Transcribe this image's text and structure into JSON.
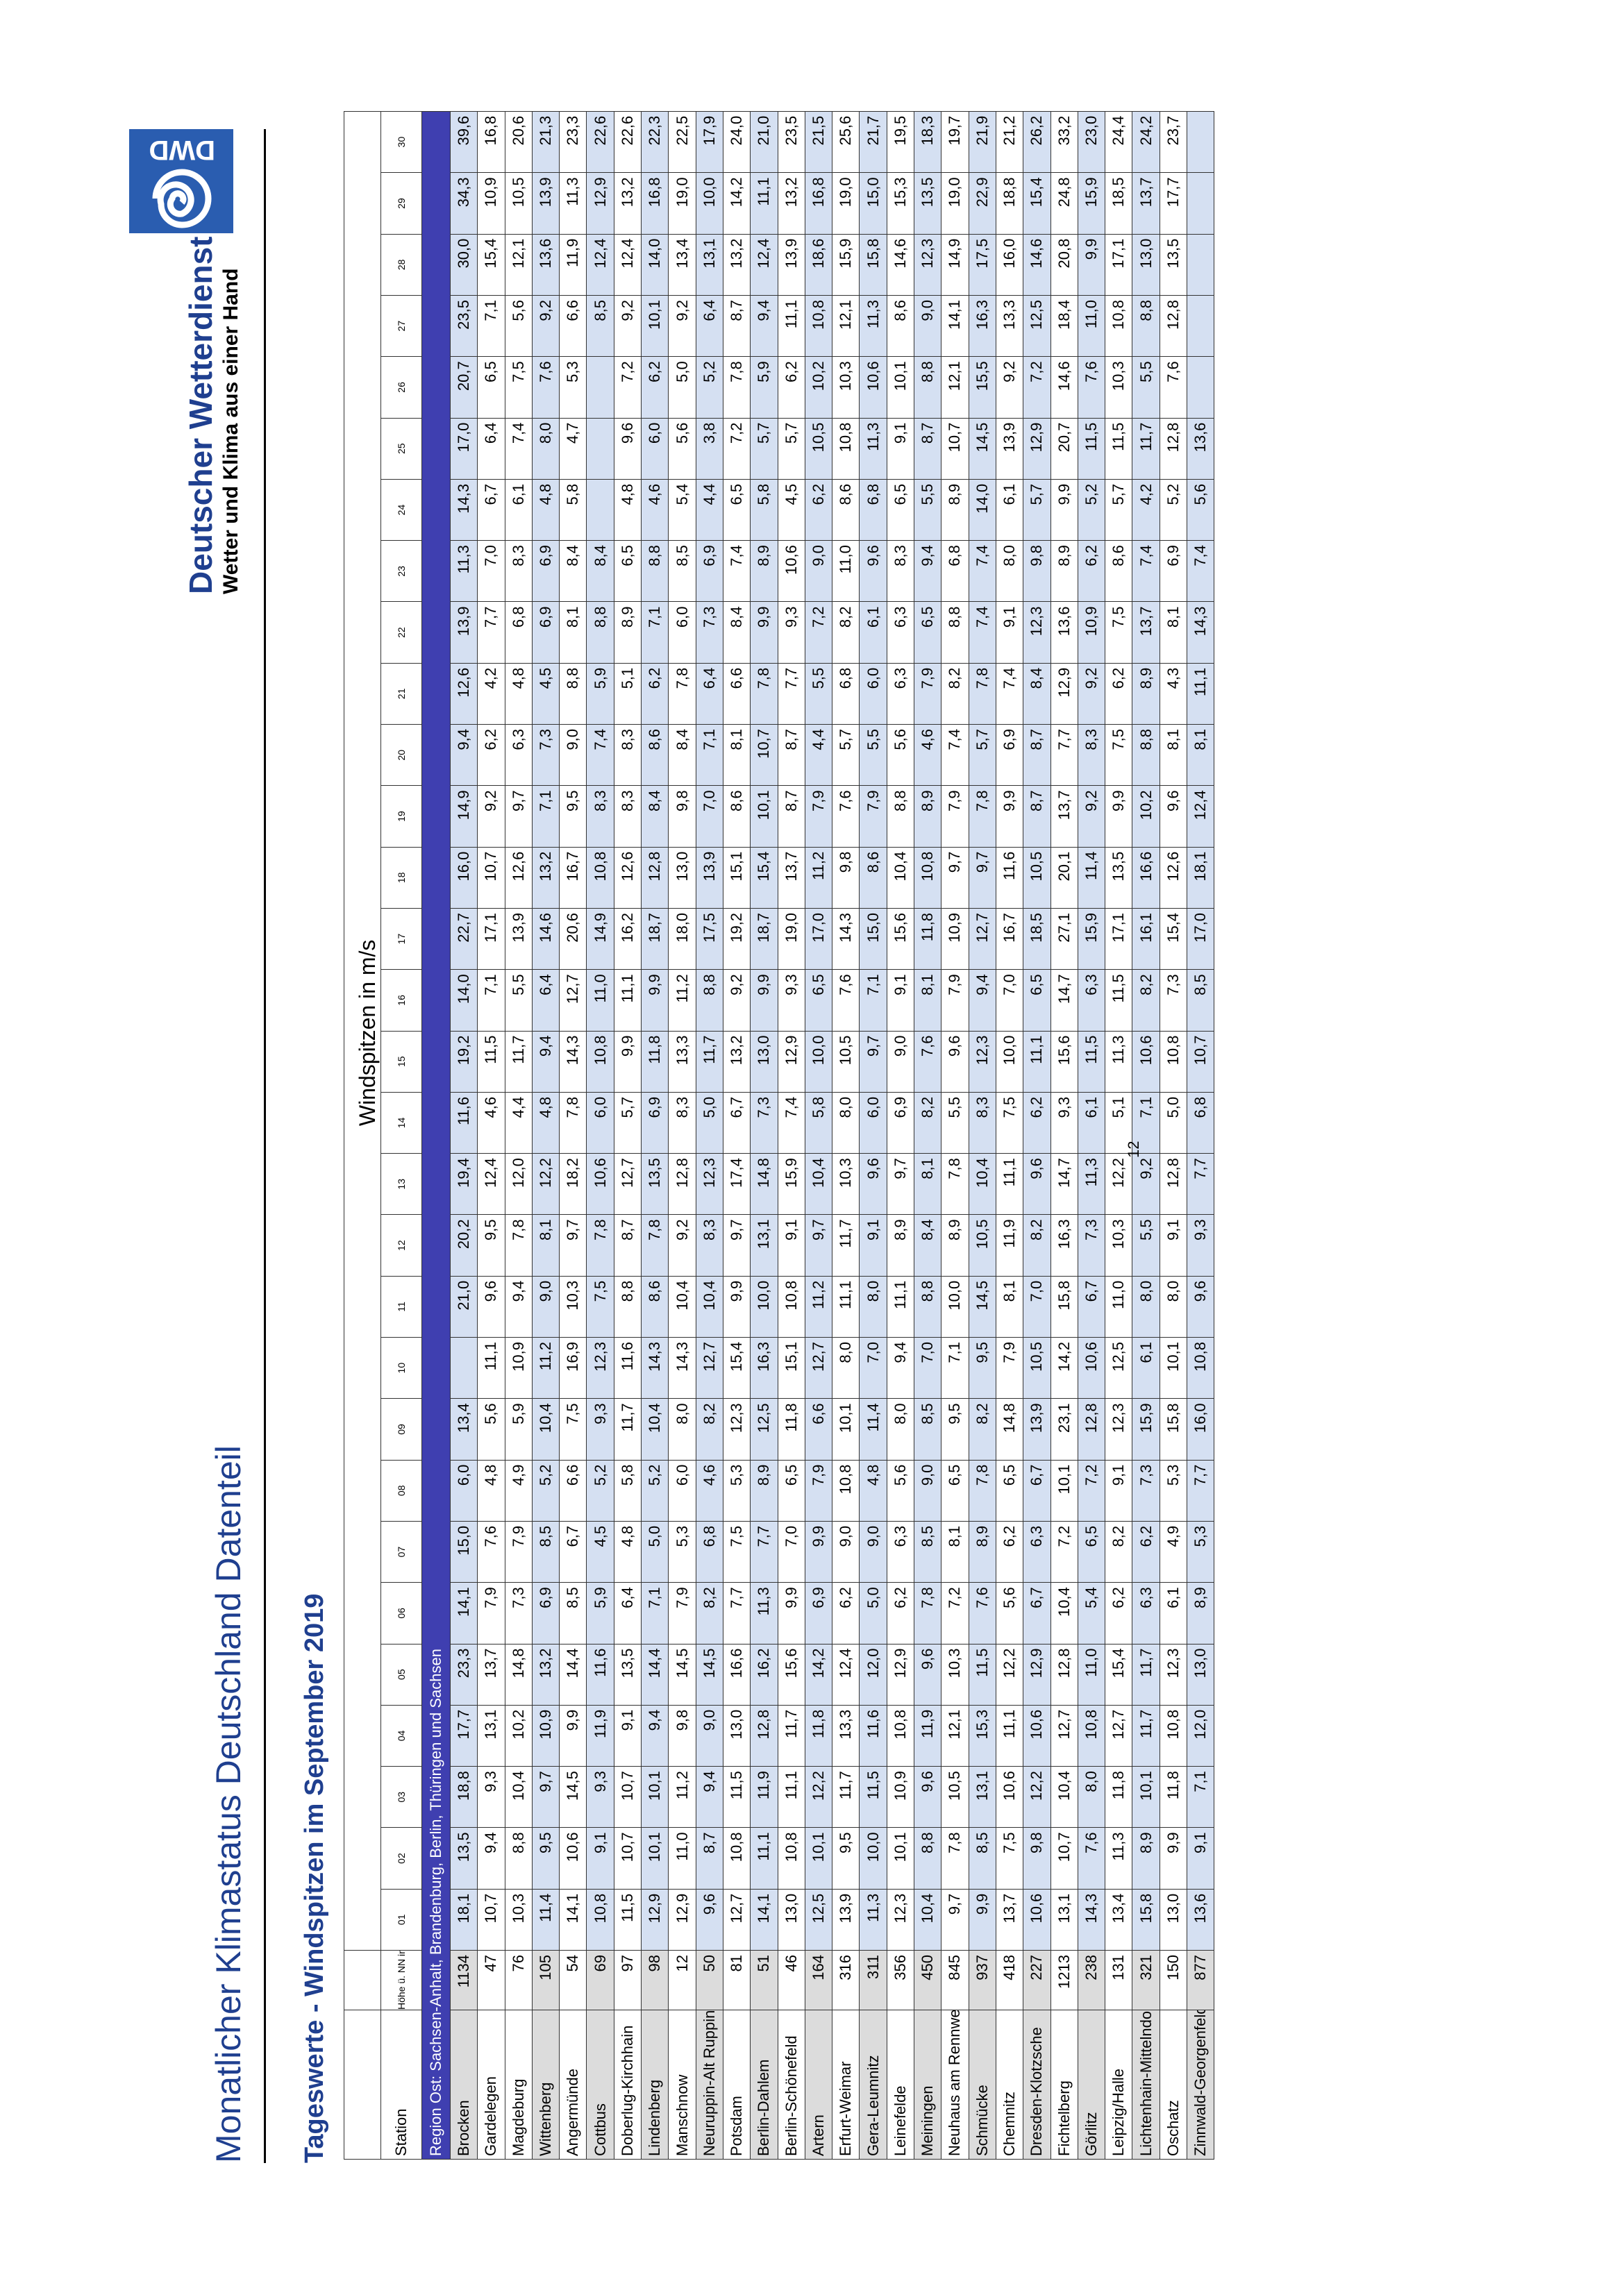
{
  "header": {
    "title": "Monatlicher Klimastatus Deutschland Datenteil",
    "brand_name": "Deutscher Wetterdienst",
    "brand_slogan": "Wetter und Klima aus einer Hand",
    "logo_text": "DWD"
  },
  "section_title": "Tageswerte - Windspitzen im September 2019",
  "table": {
    "station_header": "Station",
    "height_header": "Höhe ü. NN in m",
    "group_header": "Windspitzen in m/s",
    "days": [
      "01",
      "02",
      "03",
      "04",
      "05",
      "06",
      "07",
      "08",
      "09",
      "10",
      "11",
      "12",
      "13",
      "14",
      "15",
      "16",
      "17",
      "18",
      "19",
      "20",
      "21",
      "22",
      "23",
      "24",
      "25",
      "26",
      "27",
      "28",
      "29",
      "30"
    ],
    "region": "Region Ost: Sachsen-Anhalt, Brandenburg, Berlin, Thüringen und Sachsen",
    "rows": [
      {
        "station": "Brocken",
        "height": "1134",
        "hl": true,
        "values": [
          "18,1",
          "13,5",
          "18,8",
          "17,7",
          "23,3",
          "14,1",
          "15,0",
          "6,0",
          "13,4",
          "",
          "21,0",
          "20,2",
          "19,4",
          "11,6",
          "19,2",
          "14,0",
          "22,7",
          "16,0",
          "14,9",
          "9,4",
          "12,6",
          "13,9",
          "11,3",
          "14,3",
          "17,0",
          "20,7",
          "23,5",
          "30,0",
          "34,3",
          "39,6"
        ]
      },
      {
        "station": "Gardelegen",
        "height": "47",
        "hl": false,
        "values": [
          "10,7",
          "9,4",
          "9,3",
          "13,1",
          "13,7",
          "7,9",
          "7,6",
          "4,8",
          "5,6",
          "11,1",
          "9,6",
          "9,5",
          "12,4",
          "4,6",
          "11,5",
          "7,1",
          "17,1",
          "10,7",
          "9,2",
          "6,2",
          "4,2",
          "7,7",
          "7,0",
          "6,7",
          "6,4",
          "6,5",
          "7,1",
          "15,4",
          "10,9",
          "16,8"
        ]
      },
      {
        "station": "Magdeburg",
        "height": "76",
        "hl": false,
        "values": [
          "10,3",
          "8,8",
          "10,4",
          "10,2",
          "14,8",
          "7,3",
          "7,9",
          "4,9",
          "5,9",
          "10,9",
          "9,4",
          "7,8",
          "12,0",
          "4,4",
          "11,7",
          "5,5",
          "13,9",
          "12,6",
          "9,7",
          "6,3",
          "4,8",
          "6,8",
          "8,3",
          "6,1",
          "7,4",
          "7,5",
          "5,6",
          "12,1",
          "10,5",
          "20,6"
        ]
      },
      {
        "station": "Wittenberg",
        "height": "105",
        "hl": true,
        "values": [
          "11,4",
          "9,5",
          "9,7",
          "10,9",
          "13,2",
          "6,9",
          "8,5",
          "5,2",
          "10,4",
          "11,2",
          "9,0",
          "8,1",
          "12,2",
          "4,8",
          "9,4",
          "6,4",
          "14,6",
          "13,2",
          "7,1",
          "7,3",
          "4,5",
          "6,9",
          "6,9",
          "4,8",
          "8,0",
          "7,6",
          "9,2",
          "13,6",
          "13,9",
          "21,3"
        ]
      },
      {
        "station": "Angermünde",
        "height": "54",
        "hl": false,
        "values": [
          "14,1",
          "10,6",
          "14,5",
          "9,9",
          "14,4",
          "8,5",
          "6,7",
          "6,6",
          "7,5",
          "16,9",
          "10,3",
          "9,7",
          "18,2",
          "7,8",
          "14,3",
          "12,7",
          "20,6",
          "16,7",
          "9,5",
          "9,0",
          "8,8",
          "8,1",
          "8,4",
          "5,8",
          "4,7",
          "5,3",
          "6,6",
          "11,9",
          "11,3",
          "23,3"
        ]
      },
      {
        "station": "Cottbus",
        "height": "69",
        "hl": true,
        "values": [
          "10,8",
          "9,1",
          "9,3",
          "11,9",
          "11,6",
          "5,9",
          "4,5",
          "5,2",
          "9,3",
          "12,3",
          "7,5",
          "7,8",
          "10,6",
          "6,0",
          "10,8",
          "11,0",
          "14,9",
          "10,8",
          "8,3",
          "7,4",
          "5,9",
          "8,8",
          "8,4",
          "",
          "",
          "",
          "8,5",
          "12,4",
          "12,9",
          "22,6"
        ]
      },
      {
        "station": "Doberlug-Kirchhain",
        "height": "97",
        "hl": false,
        "values": [
          "11,5",
          "10,7",
          "10,7",
          "9,1",
          "13,5",
          "6,4",
          "4,8",
          "5,8",
          "11,7",
          "11,6",
          "8,8",
          "8,7",
          "12,7",
          "5,7",
          "9,9",
          "11,1",
          "16,2",
          "12,6",
          "8,3",
          "8,3",
          "5,1",
          "8,9",
          "6,5",
          "4,8",
          "9,6",
          "7,2",
          "9,2",
          "12,4",
          "13,2",
          "22,6"
        ]
      },
      {
        "station": "Lindenberg",
        "height": "98",
        "hl": true,
        "values": [
          "12,9",
          "10,1",
          "10,1",
          "9,4",
          "14,4",
          "7,1",
          "5,0",
          "5,2",
          "10,4",
          "14,3",
          "8,6",
          "7,8",
          "13,5",
          "6,9",
          "11,8",
          "9,9",
          "18,7",
          "12,8",
          "8,4",
          "8,6",
          "6,2",
          "7,1",
          "8,8",
          "4,6",
          "6,0",
          "6,2",
          "10,1",
          "14,0",
          "16,8",
          "22,3"
        ]
      },
      {
        "station": "Manschnow",
        "height": "12",
        "hl": false,
        "values": [
          "12,9",
          "11,0",
          "11,2",
          "9,8",
          "14,5",
          "7,9",
          "5,3",
          "6,0",
          "8,0",
          "14,3",
          "10,4",
          "9,2",
          "12,8",
          "8,3",
          "13,3",
          "11,2",
          "18,0",
          "13,0",
          "9,8",
          "8,4",
          "7,8",
          "6,0",
          "8,5",
          "5,4",
          "5,6",
          "5,0",
          "9,2",
          "13,4",
          "19,0",
          "22,5"
        ]
      },
      {
        "station": "Neuruppin-Alt Ruppin",
        "height": "50",
        "hl": true,
        "values": [
          "9,6",
          "8,7",
          "9,4",
          "9,0",
          "14,5",
          "8,2",
          "6,8",
          "4,6",
          "8,2",
          "12,7",
          "10,4",
          "8,3",
          "12,3",
          "5,0",
          "11,7",
          "8,8",
          "17,5",
          "13,9",
          "7,0",
          "7,1",
          "6,4",
          "7,3",
          "6,9",
          "4,4",
          "3,8",
          "5,2",
          "6,4",
          "13,1",
          "10,0",
          "17,9"
        ]
      },
      {
        "station": "Potsdam",
        "height": "81",
        "hl": false,
        "values": [
          "12,7",
          "10,8",
          "11,5",
          "13,0",
          "16,6",
          "7,7",
          "7,5",
          "5,3",
          "12,3",
          "15,4",
          "9,9",
          "9,7",
          "17,4",
          "6,7",
          "13,2",
          "9,2",
          "19,2",
          "15,1",
          "8,6",
          "8,1",
          "6,6",
          "8,4",
          "7,4",
          "6,5",
          "7,2",
          "7,8",
          "8,7",
          "13,2",
          "14,2",
          "24,0"
        ]
      },
      {
        "station": "Berlin-Dahlem",
        "height": "51",
        "hl": true,
        "values": [
          "14,1",
          "11,1",
          "11,9",
          "12,8",
          "16,2",
          "11,3",
          "7,7",
          "8,9",
          "12,5",
          "16,3",
          "10,0",
          "13,1",
          "14,8",
          "7,3",
          "13,0",
          "9,9",
          "18,7",
          "15,4",
          "10,1",
          "10,7",
          "7,8",
          "9,9",
          "8,9",
          "5,8",
          "5,7",
          "5,9",
          "9,4",
          "12,4",
          "11,1",
          "21,0"
        ]
      },
      {
        "station": "Berlin-Schönefeld",
        "height": "46",
        "hl": false,
        "values": [
          "13,0",
          "10,8",
          "11,1",
          "11,7",
          "15,6",
          "9,9",
          "7,0",
          "6,5",
          "11,8",
          "15,1",
          "10,8",
          "9,1",
          "15,9",
          "7,4",
          "12,9",
          "9,3",
          "19,0",
          "13,7",
          "8,7",
          "8,7",
          "7,7",
          "9,3",
          "10,6",
          "4,5",
          "5,7",
          "6,2",
          "11,1",
          "13,9",
          "13,2",
          "23,5"
        ]
      },
      {
        "station": "Artern",
        "height": "164",
        "hl": true,
        "values": [
          "12,5",
          "10,1",
          "12,2",
          "11,8",
          "14,2",
          "6,9",
          "9,9",
          "7,9",
          "6,6",
          "12,7",
          "11,2",
          "9,7",
          "10,4",
          "5,8",
          "10,0",
          "6,5",
          "17,0",
          "11,2",
          "7,9",
          "4,4",
          "5,5",
          "7,2",
          "9,0",
          "6,2",
          "10,5",
          "10,2",
          "10,8",
          "18,6",
          "16,8",
          "21,5"
        ]
      },
      {
        "station": "Erfurt-Weimar",
        "height": "316",
        "hl": false,
        "values": [
          "13,9",
          "9,5",
          "11,7",
          "13,3",
          "12,4",
          "6,2",
          "9,0",
          "10,8",
          "10,1",
          "8,0",
          "11,1",
          "11,7",
          "10,3",
          "8,0",
          "10,5",
          "7,6",
          "14,3",
          "9,8",
          "7,6",
          "5,7",
          "6,8",
          "8,2",
          "11,0",
          "8,6",
          "10,8",
          "10,3",
          "12,1",
          "15,9",
          "19,0",
          "25,6"
        ]
      },
      {
        "station": "Gera-Leumnitz",
        "height": "311",
        "hl": true,
        "values": [
          "11,3",
          "10,0",
          "11,5",
          "11,6",
          "12,0",
          "5,0",
          "9,0",
          "4,8",
          "11,4",
          "7,0",
          "8,0",
          "9,1",
          "9,6",
          "6,0",
          "9,7",
          "7,1",
          "15,0",
          "8,6",
          "7,9",
          "5,5",
          "6,0",
          "6,1",
          "9,6",
          "6,8",
          "11,3",
          "10,6",
          "11,3",
          "15,8",
          "15,0",
          "21,7"
        ]
      },
      {
        "station": "Leinefelde",
        "height": "356",
        "hl": false,
        "values": [
          "12,3",
          "10,1",
          "10,9",
          "10,8",
          "12,9",
          "6,2",
          "6,3",
          "5,6",
          "8,0",
          "9,4",
          "11,1",
          "8,9",
          "9,7",
          "6,9",
          "9,0",
          "9,1",
          "15,6",
          "10,4",
          "8,8",
          "5,6",
          "6,3",
          "6,3",
          "8,3",
          "6,5",
          "9,1",
          "10,1",
          "8,6",
          "14,6",
          "15,3",
          "19,5"
        ]
      },
      {
        "station": "Meiningen",
        "height": "450",
        "hl": true,
        "values": [
          "10,4",
          "8,8",
          "9,6",
          "11,9",
          "9,6",
          "7,8",
          "8,5",
          "9,0",
          "8,5",
          "7,0",
          "8,8",
          "8,4",
          "8,1",
          "8,2",
          "7,6",
          "8,1",
          "11,8",
          "10,8",
          "8,9",
          "4,6",
          "7,9",
          "6,5",
          "9,4",
          "5,5",
          "8,7",
          "8,8",
          "9,0",
          "12,3",
          "13,5",
          "18,3"
        ]
      },
      {
        "station": "Neuhaus am Rennweg",
        "height": "845",
        "hl": false,
        "values": [
          "9,7",
          "7,8",
          "10,5",
          "12,1",
          "10,3",
          "7,2",
          "8,1",
          "6,5",
          "9,5",
          "7,1",
          "10,0",
          "8,9",
          "7,8",
          "5,5",
          "9,6",
          "7,9",
          "10,9",
          "9,7",
          "7,9",
          "7,4",
          "8,2",
          "8,8",
          "6,8",
          "8,9",
          "10,7",
          "12,1",
          "14,1",
          "14,9",
          "19,0",
          "19,7"
        ]
      },
      {
        "station": "Schmücke",
        "height": "937",
        "hl": true,
        "values": [
          "9,9",
          "8,5",
          "13,1",
          "15,3",
          "11,5",
          "7,6",
          "8,9",
          "7,8",
          "8,2",
          "9,5",
          "14,5",
          "10,5",
          "10,4",
          "8,3",
          "12,3",
          "9,4",
          "12,7",
          "9,7",
          "7,8",
          "5,7",
          "7,8",
          "7,4",
          "7,4",
          "14,0",
          "14,5",
          "15,5",
          "16,3",
          "17,5",
          "22,9",
          "21,9"
        ]
      },
      {
        "station": "Chemnitz",
        "height": "418",
        "hl": false,
        "values": [
          "13,7",
          "7,5",
          "10,6",
          "11,1",
          "12,2",
          "5,6",
          "6,2",
          "6,5",
          "14,8",
          "7,9",
          "8,1",
          "11,9",
          "11,1",
          "7,5",
          "10,0",
          "7,0",
          "16,7",
          "11,6",
          "9,9",
          "6,9",
          "7,4",
          "9,1",
          "8,0",
          "6,1",
          "13,9",
          "9,2",
          "13,3",
          "16,0",
          "18,8",
          "21,2"
        ]
      },
      {
        "station": "Dresden-Klotzsche",
        "height": "227",
        "hl": true,
        "values": [
          "10,6",
          "9,8",
          "12,2",
          "10,6",
          "12,9",
          "6,7",
          "6,3",
          "6,7",
          "13,9",
          "10,5",
          "7,0",
          "8,2",
          "9,6",
          "6,2",
          "11,1",
          "6,5",
          "18,5",
          "10,5",
          "8,7",
          "8,7",
          "8,4",
          "12,3",
          "9,8",
          "5,7",
          "12,9",
          "7,2",
          "12,5",
          "14,6",
          "15,4",
          "26,2"
        ]
      },
      {
        "station": "Fichtelberg",
        "height": "1213",
        "hl": false,
        "values": [
          "13,1",
          "10,7",
          "10,4",
          "12,7",
          "12,8",
          "10,4",
          "7,2",
          "10,1",
          "23,1",
          "14,2",
          "15,8",
          "16,3",
          "14,7",
          "9,3",
          "15,6",
          "14,7",
          "27,1",
          "20,1",
          "13,7",
          "7,7",
          "12,9",
          "13,6",
          "8,9",
          "9,9",
          "20,7",
          "14,6",
          "18,4",
          "20,8",
          "24,8",
          "33,2"
        ]
      },
      {
        "station": "Görlitz",
        "height": "238",
        "hl": true,
        "values": [
          "14,3",
          "7,6",
          "8,0",
          "10,8",
          "11,0",
          "5,4",
          "6,5",
          "7,2",
          "12,8",
          "10,6",
          "6,7",
          "7,3",
          "11,3",
          "6,1",
          "11,5",
          "6,3",
          "15,9",
          "11,4",
          "9,2",
          "8,3",
          "9,2",
          "10,9",
          "6,2",
          "5,2",
          "11,5",
          "7,6",
          "11,0",
          "9,9",
          "15,9",
          "23,0"
        ]
      },
      {
        "station": "Leipzig/Halle",
        "height": "131",
        "hl": false,
        "values": [
          "13,4",
          "11,3",
          "11,8",
          "12,7",
          "15,4",
          "6,2",
          "8,2",
          "9,1",
          "12,3",
          "12,5",
          "11,0",
          "10,3",
          "12,2",
          "5,1",
          "11,3",
          "11,5",
          "17,1",
          "13,5",
          "9,9",
          "7,5",
          "6,2",
          "7,5",
          "8,6",
          "5,7",
          "11,5",
          "10,3",
          "10,8",
          "17,1",
          "18,5",
          "24,4"
        ]
      },
      {
        "station": "Lichtenhain-Mittelndorf",
        "height": "321",
        "hl": true,
        "values": [
          "15,8",
          "8,9",
          "10,1",
          "11,7",
          "11,7",
          "6,3",
          "6,2",
          "7,3",
          "15,9",
          "6,1",
          "8,0",
          "5,5",
          "9,2",
          "7,1",
          "10,6",
          "8,2",
          "16,1",
          "16,6",
          "10,2",
          "8,8",
          "8,9",
          "13,7",
          "7,4",
          "4,2",
          "11,7",
          "5,5",
          "8,8",
          "13,0",
          "13,7",
          "24,2"
        ]
      },
      {
        "station": "Oschatz",
        "height": "150",
        "hl": false,
        "values": [
          "13,0",
          "9,9",
          "11,8",
          "10,8",
          "12,3",
          "6,1",
          "4,9",
          "5,3",
          "15,8",
          "10,1",
          "8,0",
          "9,1",
          "12,8",
          "5,0",
          "10,8",
          "7,3",
          "15,4",
          "12,6",
          "9,6",
          "8,1",
          "4,3",
          "8,1",
          "6,9",
          "5,2",
          "12,8",
          "7,6",
          "12,8",
          "13,5",
          "17,7",
          "23,7"
        ]
      },
      {
        "station": "Zinnwald-Georgenfeld",
        "height": "877",
        "hl": true,
        "values": [
          "13,6",
          "9,1",
          "7,1",
          "12,0",
          "13,0",
          "8,9",
          "5,3",
          "7,7",
          "16,0",
          "10,8",
          "9,6",
          "9,3",
          "7,7",
          "6,8",
          "10,7",
          "8,5",
          "17,0",
          "18,1",
          "12,4",
          "8,1",
          "11,1",
          "14,3",
          "7,4",
          "5,6",
          "13,6",
          "",
          "",
          "",
          "",
          ""
        ]
      }
    ]
  },
  "page_number": "12"
}
